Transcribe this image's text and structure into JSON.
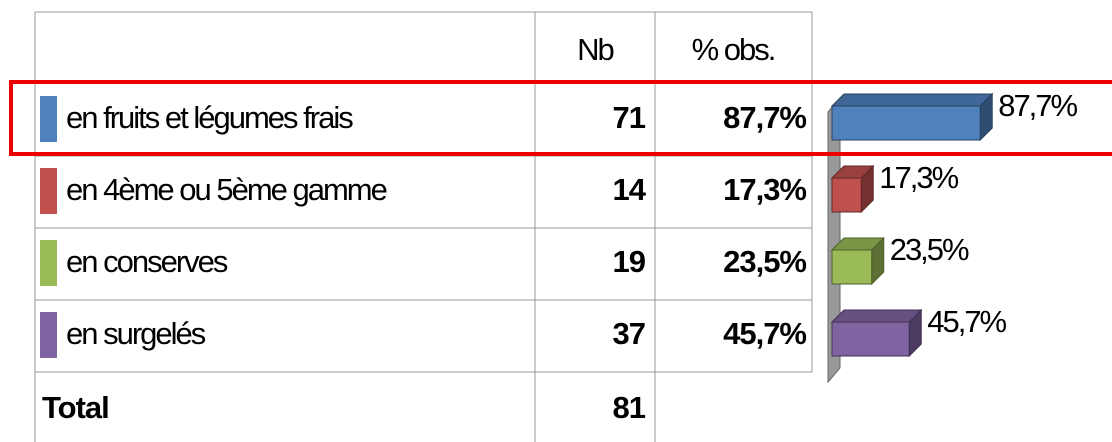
{
  "table": {
    "columns": [
      "Nb",
      "% obs."
    ],
    "rows": [
      {
        "label": "en fruits et légumes frais",
        "nb": 71,
        "pct": 87.7,
        "pct_label": "87,7%",
        "color": "#4f81bd"
      },
      {
        "label": "en 4ème ou 5ème gamme",
        "nb": 14,
        "pct": 17.3,
        "pct_label": "17,3%",
        "color": "#c0504d"
      },
      {
        "label": "en conserves",
        "nb": 19,
        "pct": 23.5,
        "pct_label": "23,5%",
        "color": "#9bbb59"
      },
      {
        "label": "en surgelés",
        "nb": 37,
        "pct": 45.7,
        "pct_label": "45,7%",
        "color": "#8064a2"
      }
    ],
    "total": {
      "label": "Total",
      "nb": 81
    }
  }
}
